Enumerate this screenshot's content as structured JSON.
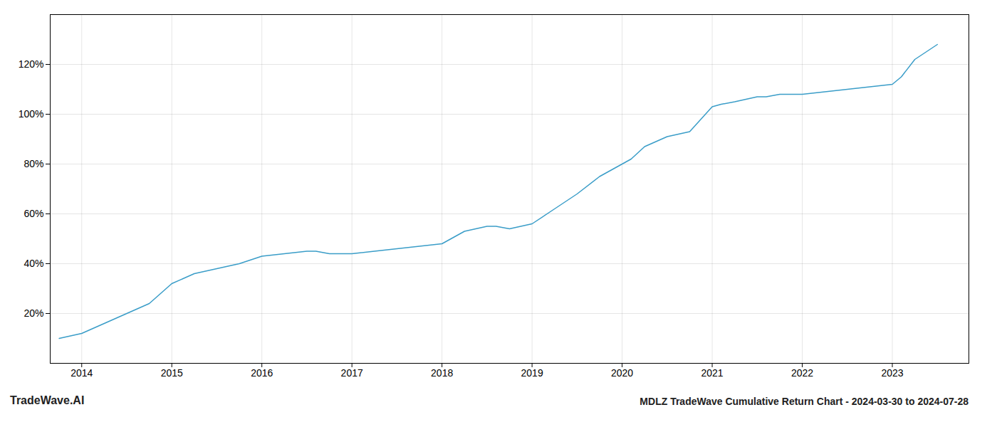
{
  "chart_data": {
    "type": "line",
    "title": "MDLZ TradeWave Cumulative Return Chart - 2024-03-30 to 2024-07-28",
    "annotations": [
      "TradeWave.AI"
    ],
    "x": [
      2013.75,
      2014.0,
      2014.25,
      2014.5,
      2014.75,
      2015.0,
      2015.25,
      2015.5,
      2015.75,
      2016.0,
      2016.25,
      2016.5,
      2016.6,
      2016.75,
      2017.0,
      2017.25,
      2017.5,
      2017.75,
      2018.0,
      2018.1,
      2018.25,
      2018.5,
      2018.6,
      2018.75,
      2019.0,
      2019.25,
      2019.5,
      2019.75,
      2020.0,
      2020.1,
      2020.25,
      2020.5,
      2020.75,
      2021.0,
      2021.1,
      2021.25,
      2021.5,
      2021.6,
      2021.75,
      2022.0,
      2022.25,
      2022.5,
      2022.75,
      2023.0,
      2023.1,
      2023.25,
      2023.5
    ],
    "values": [
      10,
      12,
      16,
      20,
      24,
      32,
      36,
      38,
      40,
      43,
      44,
      45,
      45,
      44,
      44,
      45,
      46,
      47,
      48,
      50,
      53,
      55,
      55,
      54,
      56,
      62,
      68,
      75,
      80,
      82,
      87,
      91,
      93,
      103,
      104,
      105,
      107,
      107,
      108,
      108,
      109,
      110,
      111,
      112,
      115,
      122,
      128
    ],
    "color": "#3a9dc8",
    "xlim": [
      2013.65,
      2023.85
    ],
    "xticks": [
      2014,
      2015,
      2016,
      2017,
      2018,
      2019,
      2020,
      2021,
      2022,
      2023
    ],
    "ylim": [
      0,
      140
    ],
    "yticks": [
      {
        "value": 20,
        "label": "20%"
      },
      {
        "value": 40,
        "label": "40%"
      },
      {
        "value": 60,
        "label": "60%"
      },
      {
        "value": 80,
        "label": "80%"
      },
      {
        "value": 100,
        "label": "100%"
      },
      {
        "value": 120,
        "label": "120%"
      }
    ],
    "grid": true
  }
}
